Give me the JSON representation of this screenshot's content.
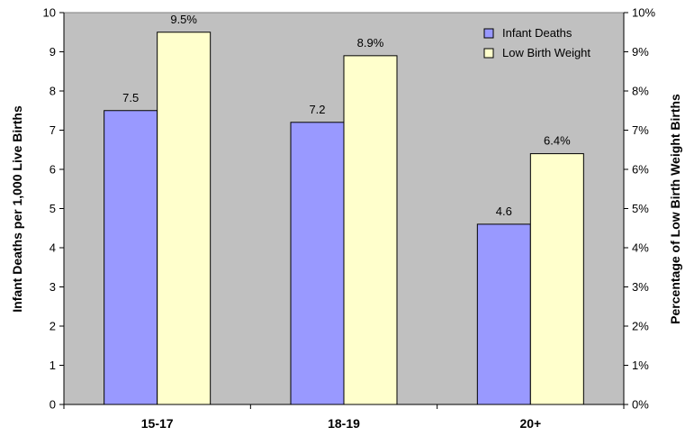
{
  "chart_data": {
    "type": "bar",
    "categories": [
      "15-17",
      "18-19",
      "20+"
    ],
    "series": [
      {
        "name": "Infant Deaths",
        "values": [
          7.5,
          7.2,
          4.6
        ],
        "labels": [
          "7.5",
          "7.2",
          "4.6"
        ],
        "axis": "left",
        "color": "#9999ff"
      },
      {
        "name": "Low Birth Weight",
        "values": [
          0.095,
          0.089,
          0.064
        ],
        "labels": [
          "9.5%",
          "8.9%",
          "6.4%"
        ],
        "axis": "right",
        "color": "#ffffcc"
      }
    ],
    "ylabel": "Infant Deaths per 1,000 Live Births",
    "y2label": "Percentage of Low Birth Weight Births",
    "ylim": [
      0,
      10
    ],
    "y2lim": [
      0,
      0.1
    ],
    "yticks": [
      "0",
      "1",
      "2",
      "3",
      "4",
      "5",
      "6",
      "7",
      "8",
      "9",
      "10"
    ],
    "y2ticks": [
      "0%",
      "1%",
      "2%",
      "3%",
      "4%",
      "5%",
      "6%",
      "7%",
      "8%",
      "9%",
      "10%"
    ],
    "grid": false,
    "legend_position": "top-right",
    "plot_background": "#c0c0c0"
  }
}
